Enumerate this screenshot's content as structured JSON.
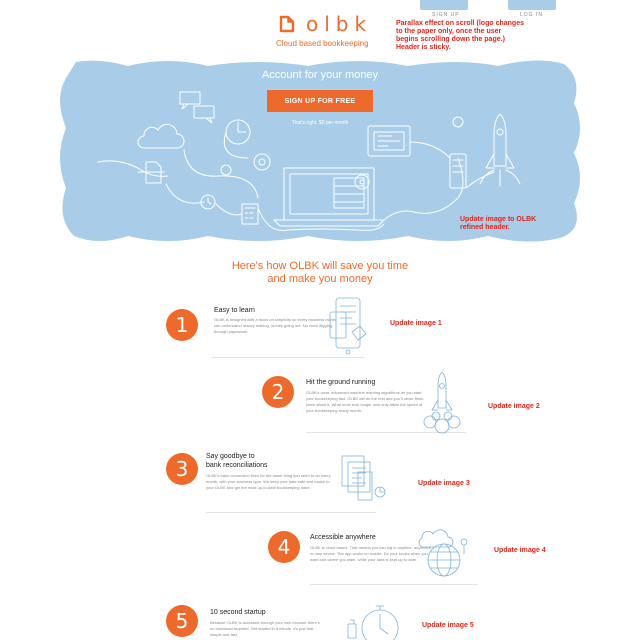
{
  "header": {
    "signup_label": "SIGN UP",
    "login_label": "LOG IN",
    "logo_text": "olbk",
    "tagline": "Cloud based bookkeeping",
    "note": "Parallax effect on scroll (logo changes to the paper only, once the user begins scrolling down the page.) Header is sticky."
  },
  "hero": {
    "title": "Account for your money",
    "cta_label": "SIGN UP FOR FREE",
    "subtitle": "That's right, $0 per month",
    "note": "Update image to OLBK refined header."
  },
  "section": {
    "title_line1": "Here's how OLBK will save you time",
    "title_line2": "and make you money"
  },
  "steps": [
    {
      "number": "1",
      "title": "Easy to learn",
      "title_line2": "",
      "body": "OLBK is designed with a focus on simplicity so every business owner can understand money making, money going out. No more digging through paperwork.",
      "note": "Update image 1",
      "icon": "clipboard-phone-icon"
    },
    {
      "number": "2",
      "title": "Hit the ground running",
      "title_line2": "",
      "body": "OLBK's clear, advanced machine learning algorithms let you start your bookkeeping fast. OLBK will do the rest and you'll never think twice about it. What once took longer now only takes the speed of your bookkeeping ready month.",
      "note": "Update image 2",
      "icon": "rocket-icon"
    },
    {
      "number": "3",
      "title": "Say goodbye to",
      "title_line2": "bank reconciliations",
      "body": "OLBK's bank connection fixes for the same thing you need to do every month, with your business type. We keep your data safe and match to your OLBK and get the most up-to-date bookkeeping done.",
      "note": "Update image 3",
      "icon": "documents-icon"
    },
    {
      "number": "4",
      "title": "Accessible anywhere",
      "title_line2": "",
      "body": "OLBK is cloud based. That means you can log in anytime, anywhere, on any device. The app works on mobile. Do your books when you want and where you want, while your data is kept up to date.",
      "note": "Update image 4",
      "icon": "globe-cloud-icon"
    },
    {
      "number": "5",
      "title": "10 second startup",
      "title_line2": "",
      "body": "Because OLBK is accessed through your web browser there's no download required. Get started in a minute, it's just that simple and fast.",
      "note": "Update image 5",
      "icon": "stopwatch-icon"
    }
  ],
  "colors": {
    "accent": "#ee6a2c",
    "hero_blue": "#a9cde8",
    "note_red": "#e0261b"
  }
}
